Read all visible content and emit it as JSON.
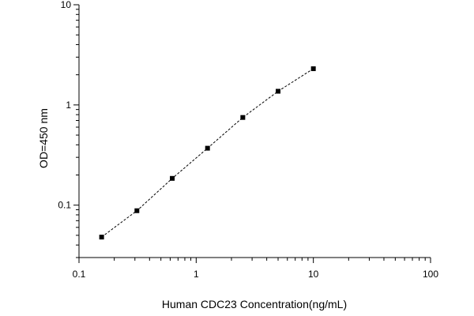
{
  "chart_data": {
    "type": "line",
    "title": "",
    "xlabel": "Human CDC23 Concentration(ng/mL)",
    "ylabel": "OD=450 nm",
    "xscale": "log",
    "yscale": "log",
    "xlim": [
      0.1,
      100
    ],
    "ylim": [
      0.03,
      10
    ],
    "xticks": [
      0.1,
      1,
      10,
      100
    ],
    "xtick_labels": [
      "0.1",
      "1",
      "10",
      "100"
    ],
    "yticks": [
      0.1,
      1,
      10
    ],
    "ytick_labels": [
      "0.1",
      "1",
      "10"
    ],
    "grid": false,
    "legend": "none",
    "series": [
      {
        "x": [
          0.156,
          0.312,
          0.625,
          1.25,
          2.5,
          5,
          10
        ],
        "y": [
          0.048,
          0.088,
          0.185,
          0.37,
          0.75,
          1.37,
          2.3
        ]
      }
    ],
    "colors": {
      "line": "#000000",
      "marker": "#000000",
      "axis": "#000000"
    },
    "marker": "square",
    "line_style": "dashed"
  }
}
